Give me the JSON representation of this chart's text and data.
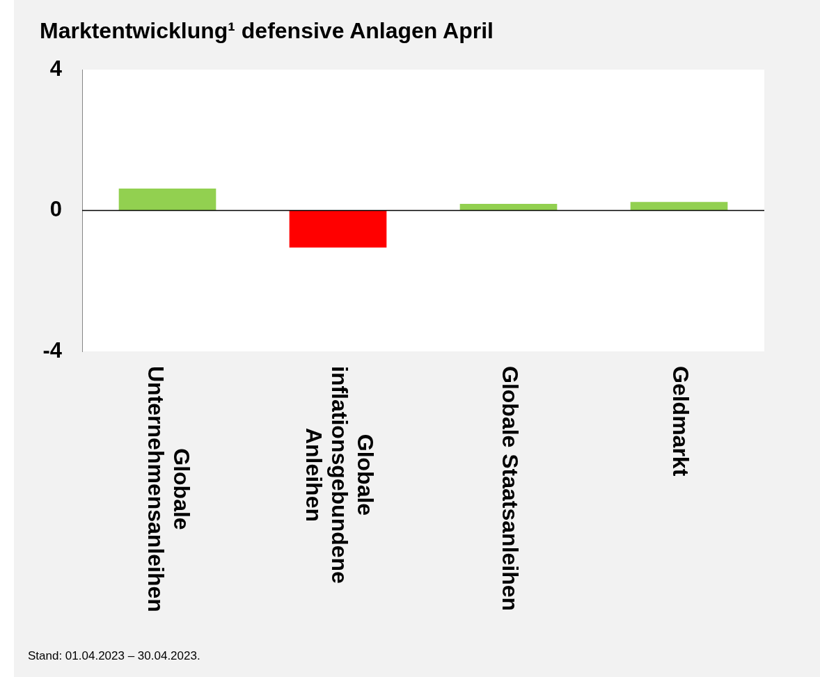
{
  "chart_data": {
    "type": "bar",
    "title": "Marktentwicklung¹ defensive Anlagen April",
    "categories": [
      "Globale Unternehmensanleihen",
      "Globale inflationsgebundene Anleihen",
      "Globale Staatsanleihen",
      "Geldmarkt"
    ],
    "values": [
      0.62,
      -1.05,
      0.19,
      0.24
    ],
    "colors": [
      "#92d050",
      "#ff0000",
      "#92d050",
      "#92d050"
    ],
    "ylim": [
      -4,
      4
    ],
    "yticks": [
      -4,
      0,
      4
    ],
    "legend": false,
    "ref_lines": [
      {
        "axis": "y",
        "value": 0,
        "color": "#000000"
      }
    ],
    "annotations": [
      "Stand: 01.04.2023 – 30.04.2023."
    ]
  }
}
